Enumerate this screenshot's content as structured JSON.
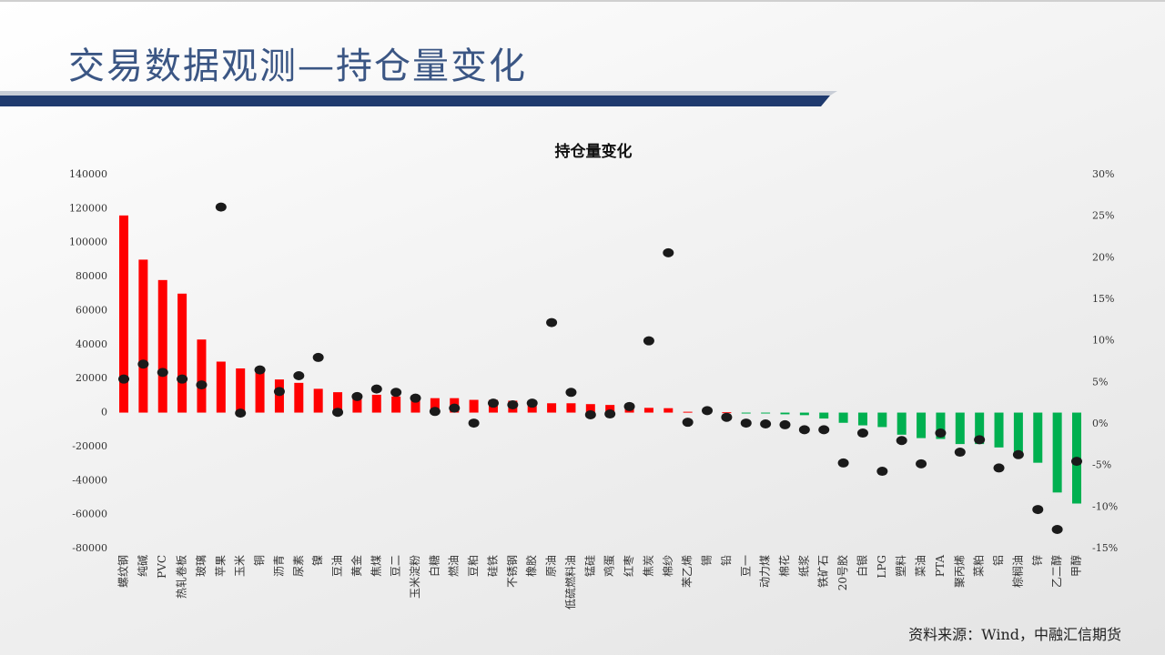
{
  "header": {
    "title": "交易数据观测—持仓量变化"
  },
  "chart_data": {
    "type": "bar",
    "title": "持仓量变化",
    "categories": [
      "螺纹钢",
      "纯碱",
      "PVC",
      "热轧卷板",
      "玻璃",
      "苹果",
      "玉米",
      "铜",
      "沥青",
      "尿素",
      "镍",
      "豆油",
      "黄金",
      "焦煤",
      "豆二",
      "玉米淀粉",
      "白糖",
      "燃油",
      "豆粕",
      "硅铁",
      "不锈钢",
      "橡胶",
      "原油",
      "低硫燃料油",
      "锰硅",
      "鸡蛋",
      "红枣",
      "焦炭",
      "棉纱",
      "苯乙烯",
      "锡",
      "铅",
      "豆一",
      "动力煤",
      "棉花",
      "纸浆",
      "铁矿石",
      "20号胶",
      "白银",
      "LPG",
      "塑料",
      "菜油",
      "PTA",
      "聚丙烯",
      "菜粕",
      "铝",
      "棕榈油",
      "锌",
      "乙二醇",
      "甲醇"
    ],
    "series": [
      {
        "type": "bar",
        "color": "#ff0000",
        "negative_color": "#00b050",
        "values": [
          116000,
          90000,
          78000,
          70000,
          43000,
          30000,
          26000,
          25000,
          19500,
          17500,
          14000,
          12000,
          11000,
          10500,
          9500,
          8500,
          8500,
          8500,
          7500,
          7500,
          7000,
          7000,
          5500,
          5500,
          5000,
          4500,
          3000,
          2800,
          2600,
          500,
          400,
          200,
          -100,
          -200,
          -1000,
          -1500,
          -3500,
          -6000,
          -7500,
          -8500,
          -13000,
          -15000,
          -15500,
          -18500,
          -18500,
          -20500,
          -24000,
          -29500,
          -47000,
          -53500
        ]
      },
      {
        "type": "scatter",
        "axis": "y2",
        "color": "#1a1a1a",
        "values": [
          5.4,
          7.2,
          6.2,
          5.4,
          4.7,
          26.1,
          1.3,
          6.5,
          3.9,
          5.8,
          8.0,
          1.4,
          3.3,
          4.2,
          3.8,
          3.1,
          1.5,
          1.9,
          0.1,
          2.5,
          2.3,
          2.5,
          12.2,
          3.8,
          1.1,
          1.2,
          2.1,
          10.0,
          20.6,
          0.2,
          1.6,
          0.8,
          0.1,
          0,
          -0.1,
          -0.7,
          -0.7,
          -4.7,
          -1.1,
          -5.7,
          -2.0,
          -4.8,
          -1.1,
          -3.4,
          -1.9,
          -5.3,
          -3.7,
          -10.3,
          -12.7,
          -4.5
        ]
      }
    ],
    "ylim": [
      -80000,
      140000
    ],
    "yticks": [
      140000,
      120000,
      100000,
      80000,
      60000,
      40000,
      20000,
      0,
      -20000,
      -40000,
      -60000,
      -80000
    ],
    "y2lim": [
      -15,
      30
    ],
    "y2ticks": [
      {
        "value": 30,
        "label": "30%"
      },
      {
        "value": 25,
        "label": "25%"
      },
      {
        "value": 20,
        "label": "20%"
      },
      {
        "value": 15,
        "label": "15%"
      },
      {
        "value": 10,
        "label": "10%"
      },
      {
        "value": 5,
        "label": "5%"
      },
      {
        "value": 0,
        "label": "0%"
      },
      {
        "value": -5,
        "label": "-5%"
      },
      {
        "value": -10,
        "label": "-10%"
      },
      {
        "value": -15,
        "label": "-15%"
      }
    ],
    "grid": false
  },
  "footer": {
    "source": "资料来源：Wind，中融汇信期货"
  }
}
